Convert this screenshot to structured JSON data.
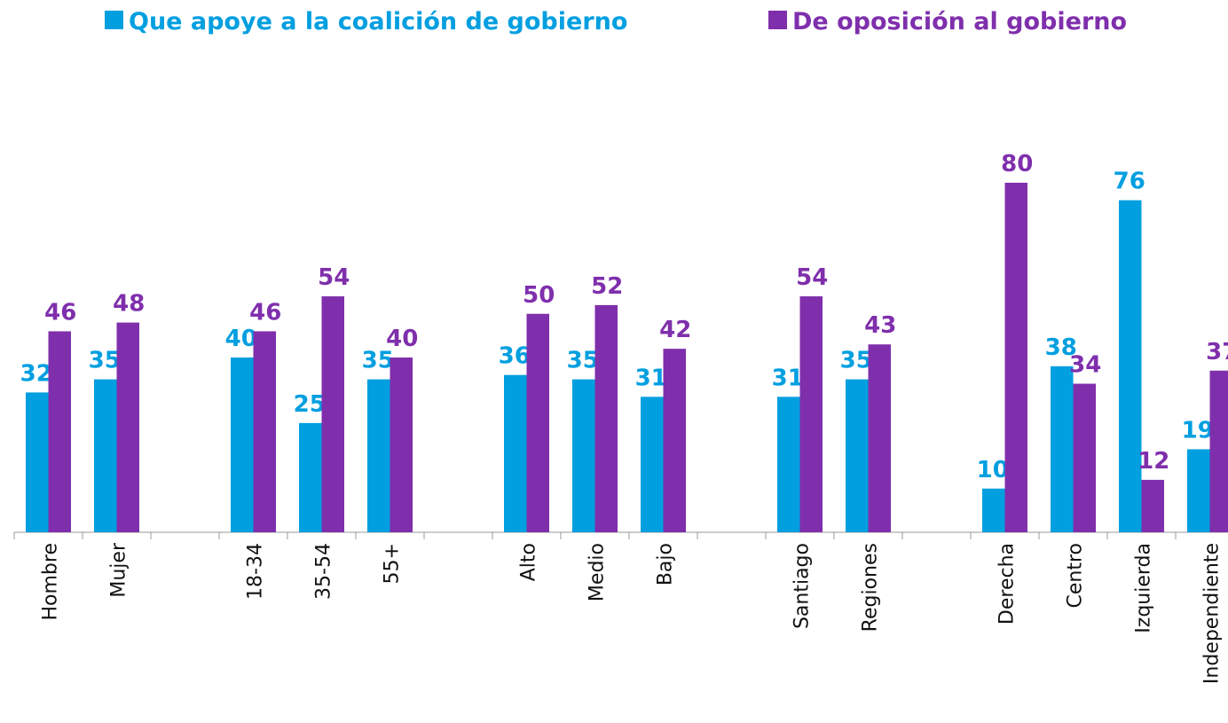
{
  "chart_data": {
    "type": "bar",
    "categories": [
      "Hombre",
      "Mujer",
      null,
      "18-34",
      "35-54",
      "55+",
      null,
      "Alto",
      "Medio",
      "Bajo",
      null,
      "Santiago",
      "Regiones",
      null,
      "Derecha",
      "Centro",
      "Izquierda",
      "Independiente"
    ],
    "series": [
      {
        "name": "Que apoye a la coalición de gobierno",
        "color": "#009fe0",
        "values": [
          32,
          35,
          null,
          40,
          25,
          35,
          null,
          36,
          35,
          31,
          null,
          31,
          35,
          null,
          10,
          38,
          76,
          19
        ]
      },
      {
        "name": "De oposición al gobierno",
        "color": "#7f2fac",
        "values": [
          46,
          48,
          null,
          46,
          54,
          40,
          null,
          50,
          52,
          42,
          null,
          54,
          43,
          null,
          80,
          34,
          12,
          37
        ]
      }
    ],
    "ylim": [
      0,
      100
    ],
    "legend": "top"
  }
}
